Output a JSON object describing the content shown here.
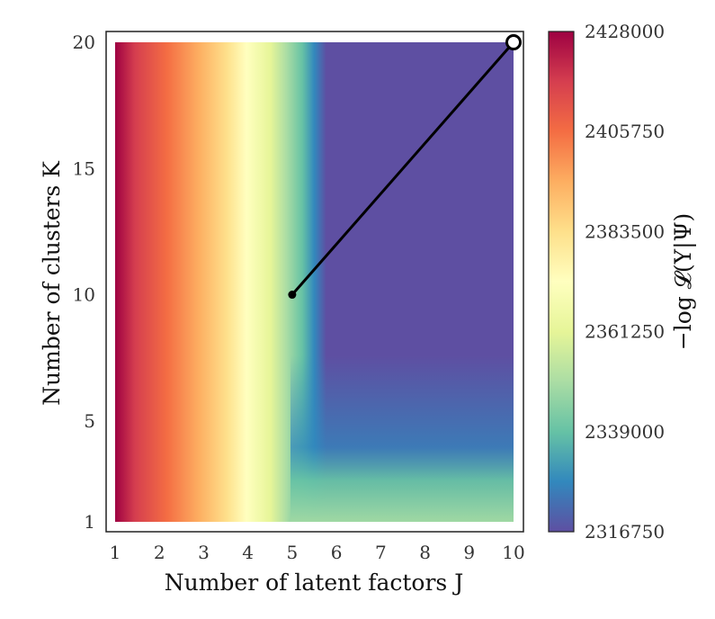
{
  "chart_data": {
    "type": "heatmap",
    "x": [
      1,
      2,
      3,
      4,
      5,
      6,
      7,
      8,
      9,
      10
    ],
    "y": [
      1,
      5,
      10,
      15,
      20
    ],
    "xlabel": "Number of latent factors J",
    "ylabel": "Number of clusters K",
    "xlim": [
      1,
      10
    ],
    "ylim": [
      1,
      20
    ],
    "x_ticks": [
      "1",
      "2",
      "3",
      "4",
      "5",
      "6",
      "7",
      "8",
      "9",
      "10"
    ],
    "y_ticks": [
      "1",
      "5",
      "10",
      "15",
      "20"
    ],
    "colorbar": {
      "label": "−log 𝓛(Y|Ψ)",
      "min": 2316750,
      "max": 2428000,
      "ticks": [
        "2428000",
        "2405750",
        "2383500",
        "2361250",
        "2339000",
        "2316750"
      ],
      "colormap": "Spectral_r"
    },
    "value_by_J": [
      {
        "J": 1,
        "value": 2428000
      },
      {
        "J": 2,
        "value": 2408000
      },
      {
        "J": 3,
        "value": 2372000
      },
      {
        "J": 4,
        "value": 2350000
      },
      {
        "J": 5,
        "value": 2318000
      },
      {
        "J": 6,
        "value": 2316750
      },
      {
        "J": 7,
        "value": 2316750
      },
      {
        "J": 8,
        "value": 2316750
      },
      {
        "J": 9,
        "value": 2316750
      },
      {
        "J": 10,
        "value": 2316750
      }
    ],
    "path": {
      "start": {
        "J": 5,
        "K": 10
      },
      "end": {
        "J": 10,
        "K": 20
      }
    },
    "grid": false
  }
}
